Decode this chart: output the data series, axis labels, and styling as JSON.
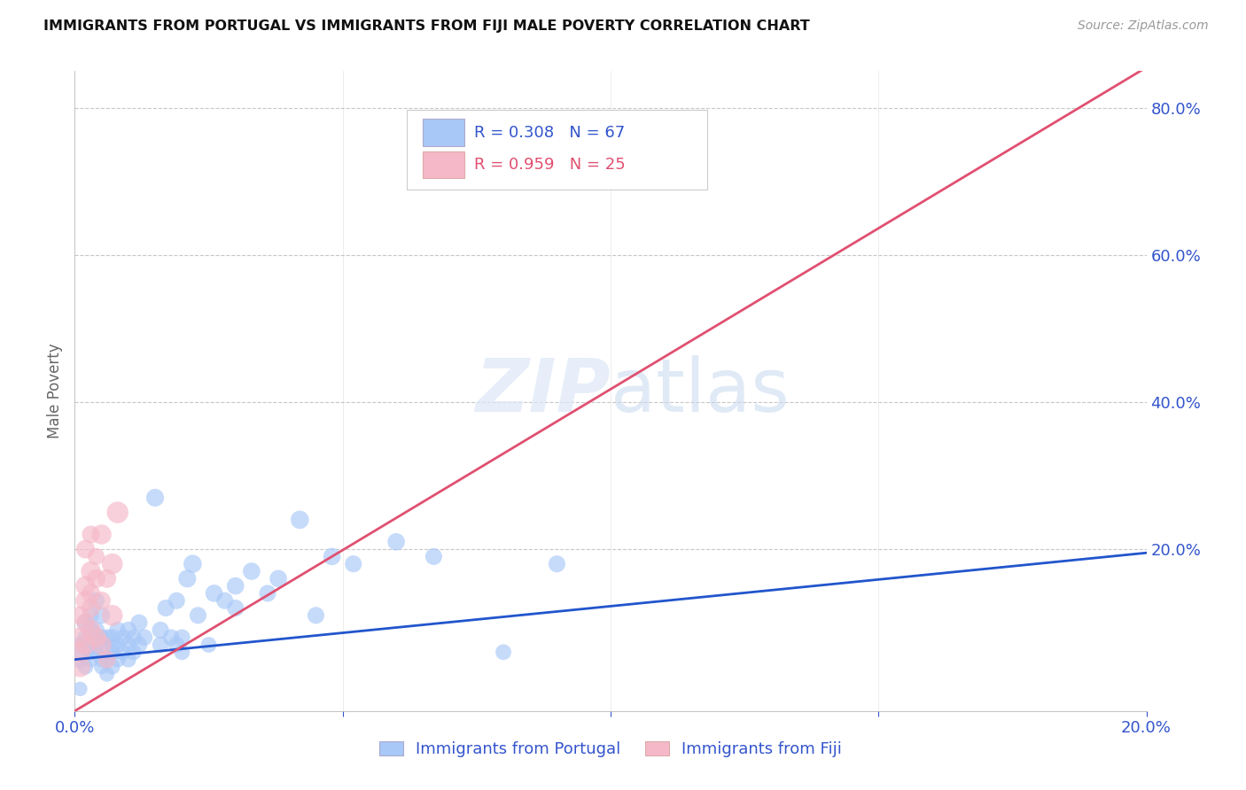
{
  "title": "IMMIGRANTS FROM PORTUGAL VS IMMIGRANTS FROM FIJI MALE POVERTY CORRELATION CHART",
  "source": "Source: ZipAtlas.com",
  "ylabel": "Male Poverty",
  "color_portugal": "#a8c8f8",
  "color_fiji": "#f5b8c8",
  "color_line_portugal": "#2255cc",
  "color_line_fiji": "#e05070",
  "color_ticks": "#3355cc",
  "portugal_R": 0.308,
  "portugal_N": 67,
  "fiji_R": 0.959,
  "fiji_N": 25,
  "xlim": [
    0.0,
    0.2
  ],
  "ylim": [
    -0.02,
    0.85
  ],
  "portugal_points": [
    [
      0.001,
      0.05
    ],
    [
      0.001,
      0.07
    ],
    [
      0.002,
      0.08
    ],
    [
      0.002,
      0.04
    ],
    [
      0.002,
      0.1
    ],
    [
      0.003,
      0.06
    ],
    [
      0.003,
      0.09
    ],
    [
      0.003,
      0.05
    ],
    [
      0.003,
      0.11
    ],
    [
      0.004,
      0.07
    ],
    [
      0.004,
      0.13
    ],
    [
      0.004,
      0.06
    ],
    [
      0.004,
      0.09
    ],
    [
      0.005,
      0.05
    ],
    [
      0.005,
      0.08
    ],
    [
      0.005,
      0.11
    ],
    [
      0.005,
      0.04
    ],
    [
      0.006,
      0.08
    ],
    [
      0.006,
      0.03
    ],
    [
      0.006,
      0.06
    ],
    [
      0.006,
      0.05
    ],
    [
      0.007,
      0.07
    ],
    [
      0.007,
      0.04
    ],
    [
      0.007,
      0.08
    ],
    [
      0.007,
      0.06
    ],
    [
      0.008,
      0.09
    ],
    [
      0.008,
      0.05
    ],
    [
      0.008,
      0.07
    ],
    [
      0.009,
      0.06
    ],
    [
      0.009,
      0.08
    ],
    [
      0.01,
      0.05
    ],
    [
      0.01,
      0.07
    ],
    [
      0.01,
      0.09
    ],
    [
      0.011,
      0.08
    ],
    [
      0.011,
      0.06
    ],
    [
      0.012,
      0.1
    ],
    [
      0.012,
      0.07
    ],
    [
      0.013,
      0.08
    ],
    [
      0.015,
      0.27
    ],
    [
      0.016,
      0.09
    ],
    [
      0.016,
      0.07
    ],
    [
      0.017,
      0.12
    ],
    [
      0.018,
      0.08
    ],
    [
      0.019,
      0.13
    ],
    [
      0.019,
      0.07
    ],
    [
      0.02,
      0.06
    ],
    [
      0.02,
      0.08
    ],
    [
      0.021,
      0.16
    ],
    [
      0.022,
      0.18
    ],
    [
      0.023,
      0.11
    ],
    [
      0.025,
      0.07
    ],
    [
      0.026,
      0.14
    ],
    [
      0.028,
      0.13
    ],
    [
      0.03,
      0.15
    ],
    [
      0.03,
      0.12
    ],
    [
      0.033,
      0.17
    ],
    [
      0.036,
      0.14
    ],
    [
      0.038,
      0.16
    ],
    [
      0.042,
      0.24
    ],
    [
      0.045,
      0.11
    ],
    [
      0.048,
      0.19
    ],
    [
      0.052,
      0.18
    ],
    [
      0.06,
      0.21
    ],
    [
      0.067,
      0.19
    ],
    [
      0.08,
      0.06
    ],
    [
      0.09,
      0.18
    ],
    [
      0.001,
      0.01
    ]
  ],
  "fiji_points": [
    [
      0.001,
      0.04
    ],
    [
      0.001,
      0.06
    ],
    [
      0.001,
      0.08
    ],
    [
      0.001,
      0.11
    ],
    [
      0.002,
      0.07
    ],
    [
      0.002,
      0.13
    ],
    [
      0.002,
      0.1
    ],
    [
      0.002,
      0.15
    ],
    [
      0.002,
      0.2
    ],
    [
      0.003,
      0.09
    ],
    [
      0.003,
      0.12
    ],
    [
      0.003,
      0.17
    ],
    [
      0.003,
      0.14
    ],
    [
      0.003,
      0.22
    ],
    [
      0.004,
      0.08
    ],
    [
      0.004,
      0.16
    ],
    [
      0.004,
      0.19
    ],
    [
      0.005,
      0.07
    ],
    [
      0.005,
      0.13
    ],
    [
      0.005,
      0.22
    ],
    [
      0.006,
      0.05
    ],
    [
      0.006,
      0.16
    ],
    [
      0.007,
      0.11
    ],
    [
      0.007,
      0.18
    ],
    [
      0.008,
      0.25
    ]
  ],
  "portugal_line_x": [
    0.0,
    0.2
  ],
  "portugal_line_y": [
    0.05,
    0.195
  ],
  "fiji_line_x": [
    0.0,
    0.2
  ],
  "fiji_line_y": [
    -0.02,
    0.855
  ],
  "portugal_sizes": [
    200,
    180,
    180,
    160,
    200,
    180,
    180,
    160,
    180,
    165,
    190,
    165,
    190,
    165,
    180,
    190,
    150,
    180,
    150,
    165,
    165,
    180,
    160,
    190,
    180,
    190,
    165,
    180,
    165,
    180,
    165,
    180,
    190,
    180,
    165,
    190,
    180,
    180,
    210,
    190,
    180,
    190,
    180,
    190,
    180,
    165,
    180,
    210,
    220,
    190,
    165,
    200,
    190,
    200,
    190,
    200,
    190,
    200,
    220,
    190,
    200,
    190,
    200,
    190,
    165,
    190,
    140
  ],
  "fiji_sizes": [
    280,
    260,
    260,
    220,
    260,
    260,
    230,
    260,
    230,
    260,
    230,
    260,
    230,
    210,
    260,
    230,
    190,
    260,
    220,
    260,
    210,
    230,
    290,
    290,
    310
  ]
}
